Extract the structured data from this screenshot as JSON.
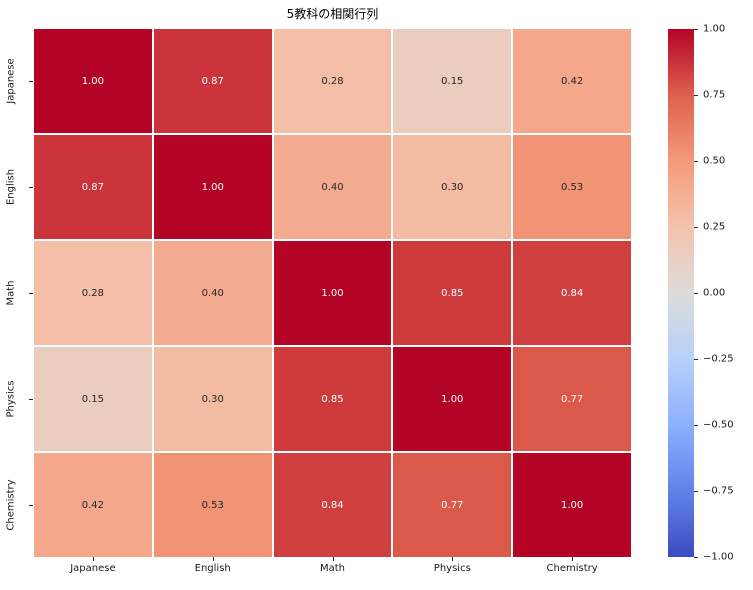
{
  "title": "5教科の相関行列",
  "chart_data": {
    "type": "heatmap",
    "title": "5教科の相関行列",
    "categories": [
      "Japanese",
      "English",
      "Math",
      "Physics",
      "Chemistry"
    ],
    "matrix": [
      [
        1.0,
        0.87,
        0.28,
        0.15,
        0.42
      ],
      [
        0.87,
        1.0,
        0.4,
        0.3,
        0.53
      ],
      [
        0.28,
        0.4,
        1.0,
        0.85,
        0.84
      ],
      [
        0.15,
        0.3,
        0.85,
        1.0,
        0.77
      ],
      [
        0.42,
        0.53,
        0.84,
        0.77,
        1.0
      ]
    ],
    "colormap": "coolwarm",
    "vmin": -1.0,
    "vmax": 1.0,
    "annotation_decimals": 2,
    "colorbar_ticks": [
      "1.00",
      "0.75",
      "0.50",
      "0.25",
      "0.00",
      "−0.25",
      "−0.50",
      "−0.75",
      "−1.00"
    ],
    "colors": {
      "max_red": "#b40426",
      "mid_gray": "#dddcdb",
      "min_blue": "#3b4cc0",
      "grid_line": "#ffffff",
      "annot_dark": "#262626",
      "annot_light": "#ffffff"
    },
    "legend_position": "right-colorbar",
    "grid": "off"
  }
}
